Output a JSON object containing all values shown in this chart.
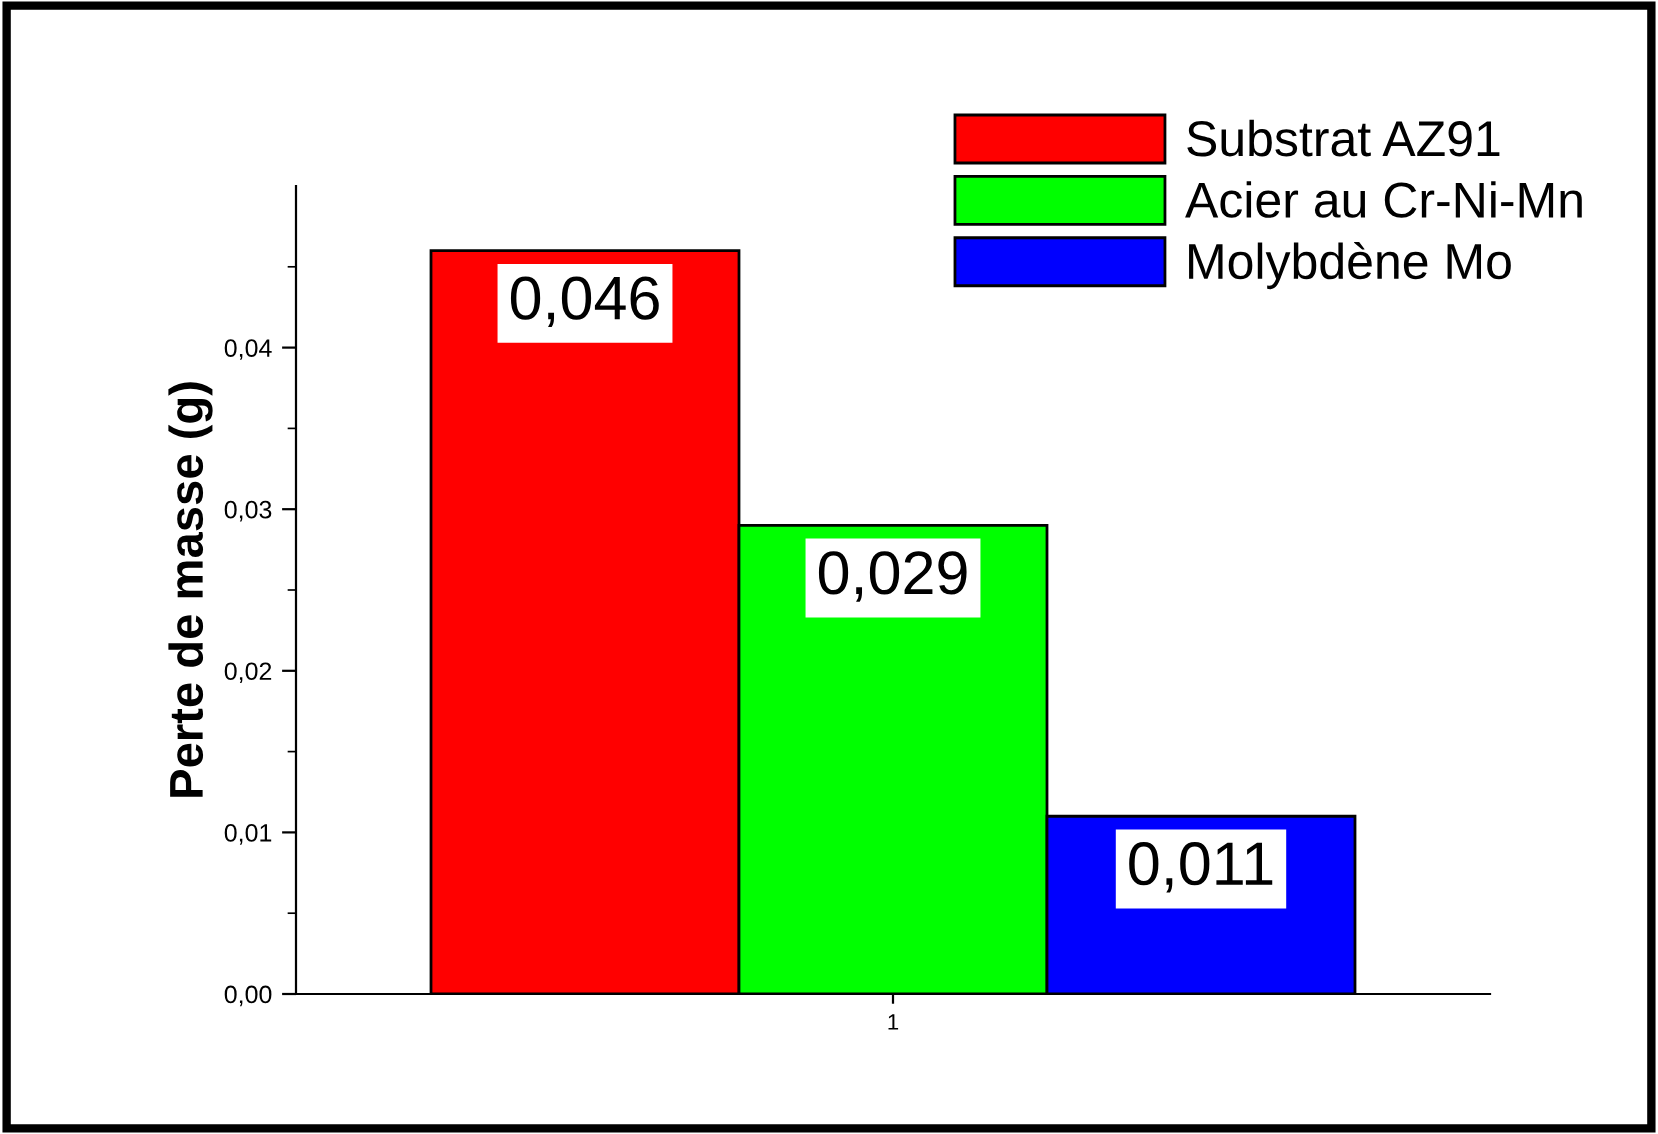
{
  "chart_data": {
    "type": "bar",
    "ylabel": "Perte de masse (g)",
    "categories": [
      "1"
    ],
    "series": [
      {
        "name": "Substrat AZ91",
        "color": "#ff0000",
        "values": [
          0.046
        ],
        "value_labels": [
          "0,046"
        ]
      },
      {
        "name": "Acier au Cr-Ni-Mn",
        "color": "#00ff00",
        "values": [
          0.029
        ],
        "value_labels": [
          "0,029"
        ]
      },
      {
        "name": "Molybdène Mo",
        "color": "#0000ff",
        "values": [
          0.011
        ],
        "value_labels": [
          "0,011"
        ]
      }
    ],
    "ylim": [
      0,
      0.05
    ],
    "yticks": [
      {
        "value": 0,
        "label": "0,00"
      },
      {
        "value": 0.005,
        "label": null
      },
      {
        "value": 0.01,
        "label": "0,01"
      },
      {
        "value": 0.015,
        "label": null
      },
      {
        "value": 0.02,
        "label": "0,02"
      },
      {
        "value": 0.025,
        "label": null
      },
      {
        "value": 0.03,
        "label": "0,03"
      },
      {
        "value": 0.035,
        "label": null
      },
      {
        "value": 0.04,
        "label": "0,04"
      },
      {
        "value": 0.045,
        "label": null
      }
    ],
    "grid": false,
    "legend": "top right"
  }
}
